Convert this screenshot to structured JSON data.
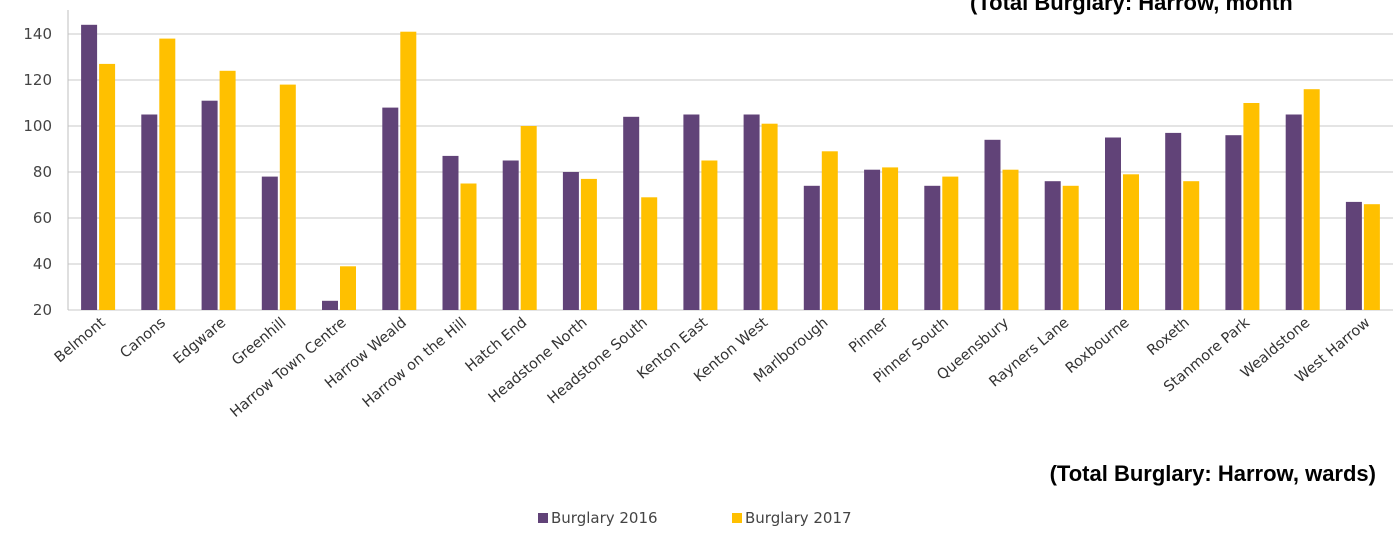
{
  "chart_data": {
    "type": "bar",
    "title": "(Total Burglary: Harrow, wards)",
    "clipped_heading": "(Total Burglary: Harrow, month",
    "xlabel": "",
    "ylabel": "",
    "ylim": [
      20,
      150
    ],
    "yticks": [
      "20",
      "40",
      "60",
      "80",
      "100",
      "120",
      "140"
    ],
    "grid": true,
    "legend_position": "bottom-center",
    "categories": [
      "Belmont",
      "Canons",
      "Edgware",
      "Greenhill",
      "Harrow Town Centre",
      "Harrow Weald",
      "Harrow on the Hill",
      "Hatch End",
      "Headstone North",
      "Headstone South",
      "Kenton East",
      "Kenton West",
      "Marlborough",
      "Pinner",
      "Pinner South",
      "Queensbury",
      "Rayners Lane",
      "Roxbourne",
      "Roxeth",
      "Stanmore Park",
      "Wealdstone",
      "West Harrow"
    ],
    "series": [
      {
        "name": "Burglary 2016",
        "color": "#614378",
        "values": [
          144,
          105,
          111,
          78,
          24,
          108,
          87,
          85,
          80,
          104,
          105,
          105,
          74,
          81,
          74,
          94,
          76,
          95,
          97,
          96,
          105,
          67
        ]
      },
      {
        "name": "Burglary 2017",
        "color": "#FFC000",
        "values": [
          127,
          138,
          124,
          118,
          39,
          141,
          75,
          100,
          77,
          69,
          85,
          101,
          89,
          82,
          78,
          81,
          74,
          79,
          76,
          110,
          116,
          66
        ]
      }
    ]
  }
}
